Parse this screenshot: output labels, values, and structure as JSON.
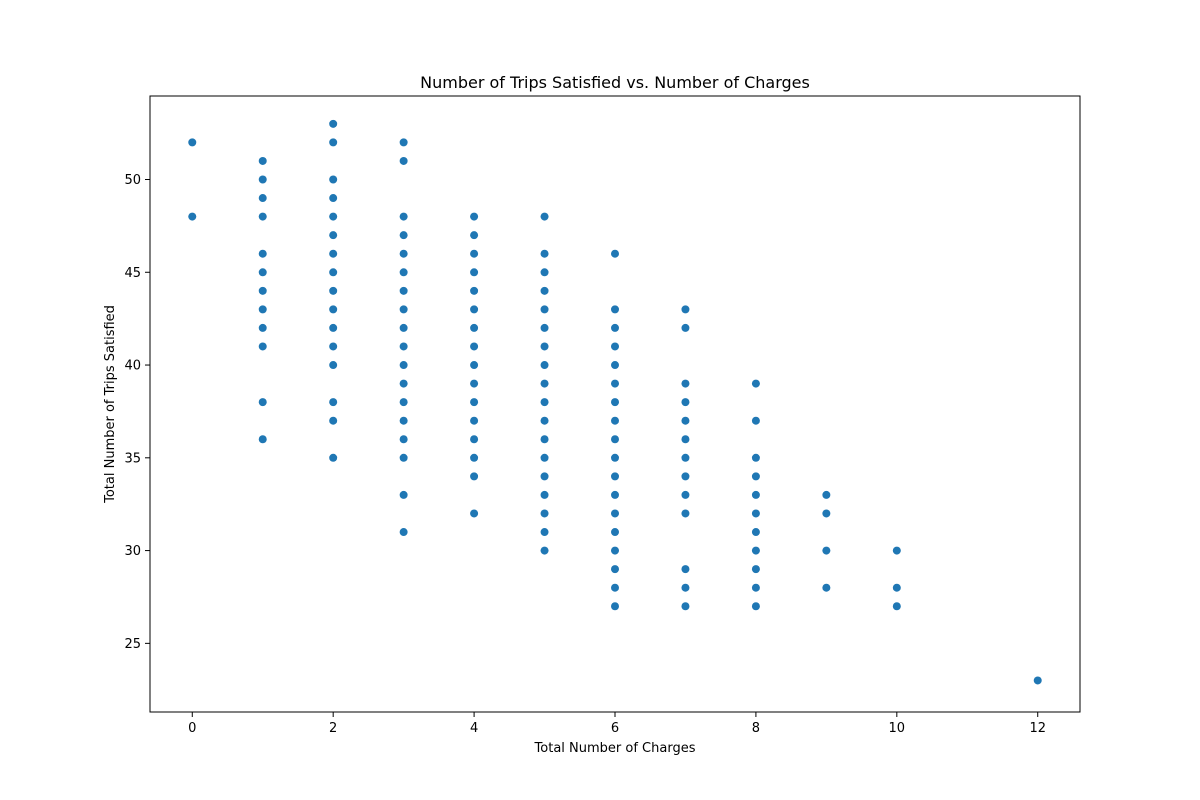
{
  "chart_data": {
    "type": "scatter",
    "title": "Number of Trips Satisfied vs. Number of Charges",
    "xlabel": "Total Number of Charges",
    "ylabel": "Total Number of Trips Satisfied",
    "xlim": [
      -0.6,
      12.6
    ],
    "ylim": [
      21.3,
      54.5
    ],
    "xticks": [
      0,
      2,
      4,
      6,
      8,
      10,
      12
    ],
    "yticks": [
      25,
      30,
      35,
      40,
      45,
      50
    ],
    "grid": false,
    "marker_color": "#1f77b4",
    "points": [
      {
        "x": 0,
        "ys": [
          48,
          52
        ]
      },
      {
        "x": 1,
        "ys": [
          36,
          38,
          41,
          42,
          43,
          44,
          45,
          46,
          48,
          49,
          50,
          51
        ]
      },
      {
        "x": 2,
        "ys": [
          35,
          37,
          38,
          40,
          41,
          42,
          43,
          44,
          45,
          46,
          47,
          48,
          49,
          50,
          52,
          53
        ]
      },
      {
        "x": 3,
        "ys": [
          31,
          33,
          35,
          36,
          37,
          38,
          39,
          40,
          41,
          42,
          43,
          44,
          45,
          46,
          47,
          48,
          51,
          52
        ]
      },
      {
        "x": 4,
        "ys": [
          32,
          34,
          35,
          36,
          37,
          38,
          39,
          40,
          41,
          42,
          43,
          44,
          45,
          46,
          47,
          48
        ]
      },
      {
        "x": 5,
        "ys": [
          30,
          31,
          32,
          33,
          34,
          35,
          36,
          37,
          38,
          39,
          40,
          41,
          42,
          43,
          44,
          45,
          46,
          48
        ]
      },
      {
        "x": 6,
        "ys": [
          27,
          28,
          29,
          30,
          31,
          32,
          33,
          34,
          35,
          36,
          37,
          38,
          39,
          40,
          41,
          42,
          43,
          46
        ]
      },
      {
        "x": 7,
        "ys": [
          27,
          28,
          29,
          32,
          33,
          34,
          35,
          36,
          37,
          38,
          39,
          42,
          43
        ]
      },
      {
        "x": 8,
        "ys": [
          27,
          28,
          29,
          30,
          31,
          32,
          33,
          34,
          35,
          37,
          39
        ]
      },
      {
        "x": 9,
        "ys": [
          28,
          30,
          32,
          33
        ]
      },
      {
        "x": 10,
        "ys": [
          27,
          28,
          30
        ]
      },
      {
        "x": 12,
        "ys": [
          23
        ]
      }
    ]
  }
}
